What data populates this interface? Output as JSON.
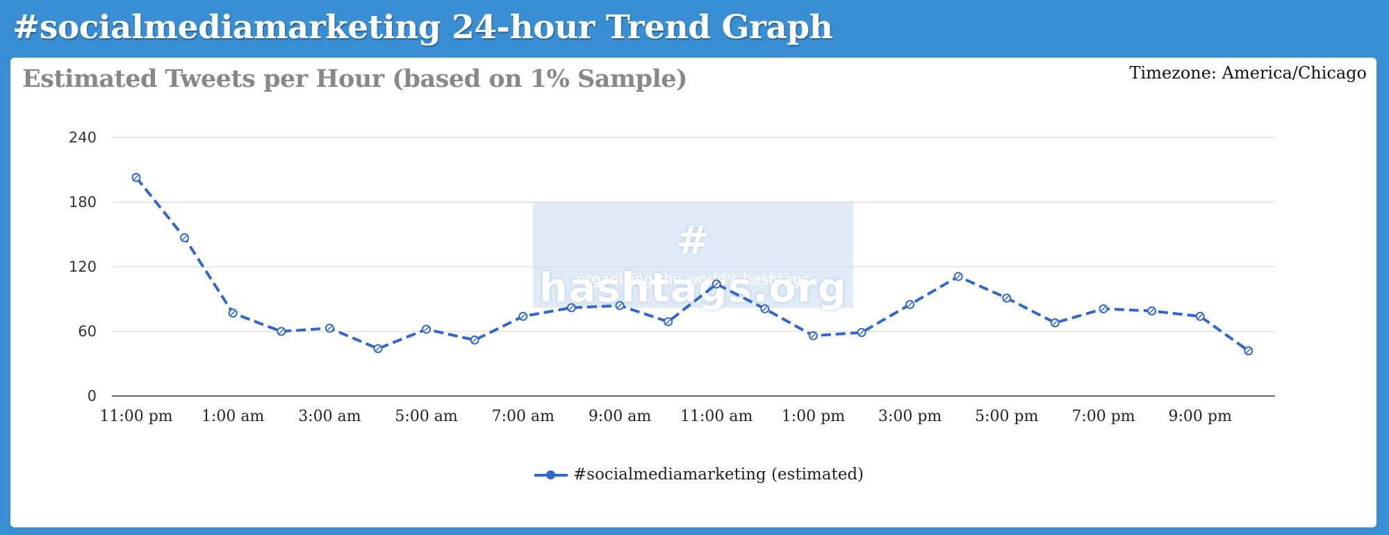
{
  "header": {
    "title": "#socialmediamarketing 24-hour Trend Graph"
  },
  "card": {
    "title": "Estimated Tweets per Hour (based on 1% Sample)",
    "timezone": "Timezone: America/Chicago"
  },
  "watermark": {
    "main": "# hashtags.org",
    "sub": "organizing the world's hashtags"
  },
  "colors": {
    "background": "#3a8fd4",
    "series": "#3366cc",
    "grid": "#d9d9d9"
  },
  "chart_data": {
    "type": "line",
    "title": "Estimated Tweets per Hour (based on 1% Sample)",
    "xlabel": "",
    "ylabel": "",
    "ylim": [
      0,
      240
    ],
    "yticks": [
      0,
      60,
      120,
      180,
      240
    ],
    "grid": true,
    "legend_position": "bottom",
    "x": [
      "11:00 pm",
      "12:00 am",
      "1:00 am",
      "2:00 am",
      "3:00 am",
      "4:00 am",
      "5:00 am",
      "6:00 am",
      "7:00 am",
      "8:00 am",
      "9:00 am",
      "10:00 am",
      "11:00 am",
      "12:00 pm",
      "1:00 pm",
      "2:00 pm",
      "3:00 pm",
      "4:00 pm",
      "5:00 pm",
      "6:00 pm",
      "7:00 pm",
      "8:00 pm",
      "9:00 pm",
      "10:00 pm"
    ],
    "xtick_labels": [
      "11:00 pm",
      "1:00 am",
      "3:00 am",
      "5:00 am",
      "7:00 am",
      "9:00 am",
      "11:00 am",
      "1:00 pm",
      "3:00 pm",
      "5:00 pm",
      "7:00 pm",
      "9:00 pm"
    ],
    "series": [
      {
        "name": "#socialmediamarketing (estimated)",
        "values": [
          203,
          147,
          77,
          60,
          63,
          44,
          62,
          52,
          74,
          82,
          84,
          69,
          104,
          81,
          56,
          59,
          85,
          111,
          91,
          68,
          81,
          79,
          74,
          42
        ]
      }
    ]
  }
}
